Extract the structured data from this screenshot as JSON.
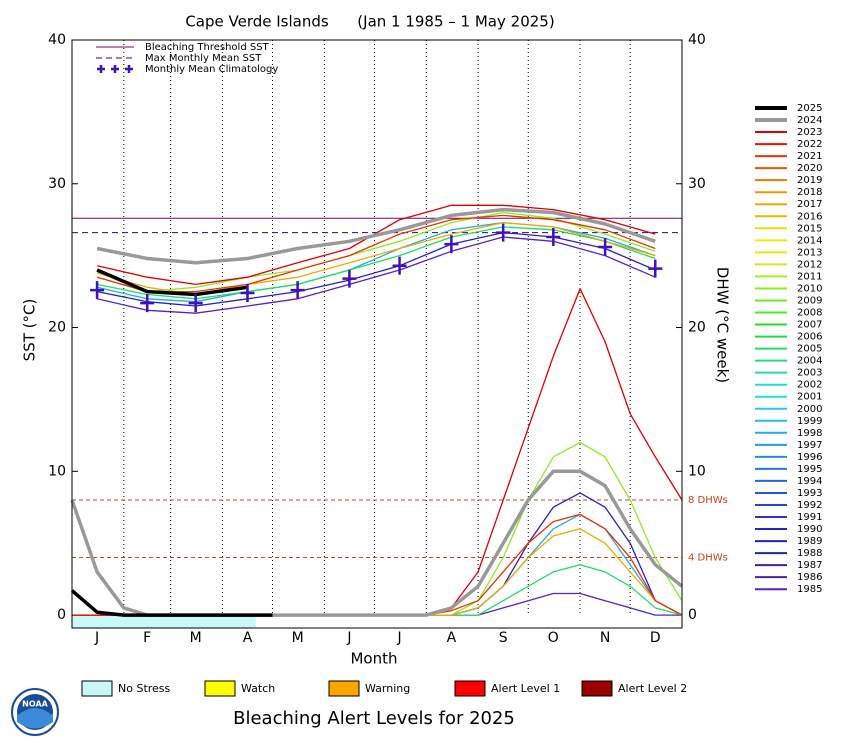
{
  "chart_data": {
    "type": "line",
    "title": "Cape Verde Islands      (Jan 1 1985 – 1 May 2025)",
    "subtitle": "Bleaching Alert Levels for 2025",
    "xlabel": "Month",
    "ylabel": "SST (°C)",
    "y2label": "DHW (°C week)",
    "logo_text": "NOAA",
    "xlim": [
      0,
      365
    ],
    "xticks": [
      {
        "value": 15,
        "label": "J"
      },
      {
        "value": 45,
        "label": "F"
      },
      {
        "value": 74,
        "label": "M"
      },
      {
        "value": 105,
        "label": "A"
      },
      {
        "value": 135,
        "label": "M"
      },
      {
        "value": 166,
        "label": "J"
      },
      {
        "value": 196,
        "label": "J"
      },
      {
        "value": 227,
        "label": "A"
      },
      {
        "value": 258,
        "label": "S"
      },
      {
        "value": 288,
        "label": "O"
      },
      {
        "value": 319,
        "label": "N"
      },
      {
        "value": 349,
        "label": "D"
      }
    ],
    "xgrid": [
      31,
      59,
      90,
      120,
      151,
      181,
      212,
      243,
      273,
      304,
      334
    ],
    "ylim": [
      -0.9,
      40
    ],
    "yticks": [
      0,
      10,
      20,
      30,
      40
    ],
    "y2lim": [
      -0.9,
      40
    ],
    "y2ticks": [
      0,
      10,
      20,
      30,
      40
    ],
    "threshold": {
      "name": "Bleaching Threshold SST",
      "value": 27.6,
      "color": "#800060"
    },
    "max_monthly_mean": {
      "name": "Max Monthly Mean SST",
      "value": 26.6,
      "color": "#300090"
    },
    "climatology": {
      "name": "Monthly Mean Climatology",
      "color": "#4010c0",
      "values": [
        22.6,
        21.7,
        21.7,
        22.4,
        22.6,
        23.4,
        24.3,
        25.8,
        26.6,
        26.3,
        25.6,
        24.1
      ]
    },
    "dhw_levels": [
      {
        "value": 8,
        "label": "8 DHWs"
      },
      {
        "value": 4,
        "label": "4 DHWs"
      }
    ],
    "dhw_level_color": "#d04010",
    "x": [
      15,
      45,
      74,
      105,
      135,
      166,
      196,
      227,
      258,
      288,
      319,
      349
    ],
    "dhw_x": [
      0,
      15,
      31,
      45,
      59,
      90,
      120,
      151,
      181,
      212,
      227,
      243,
      258,
      273,
      288,
      304,
      319,
      334,
      349,
      365
    ],
    "series": [
      {
        "name": "2025",
        "color": "#000000",
        "width": 3.5,
        "values": [
          24,
          22.5,
          22.3,
          22.8,
          null,
          null,
          null,
          null,
          null,
          null,
          null,
          null
        ],
        "dhw_values": [
          1.7,
          0.2,
          0,
          0,
          0,
          0,
          0,
          null,
          null,
          null,
          null,
          null,
          null,
          null,
          null,
          null,
          null,
          null,
          null,
          null
        ]
      },
      {
        "name": "2024",
        "color": "#999999",
        "width": 3.5,
        "values": [
          25.5,
          24.8,
          24.5,
          24.8,
          25.5,
          26,
          26.8,
          27.8,
          28.2,
          28,
          27.2,
          26
        ],
        "dhw_values": [
          8,
          3,
          0.5,
          0,
          0,
          0,
          0,
          0,
          0,
          0,
          0.5,
          2,
          5,
          8,
          10,
          10,
          9,
          6,
          3.5,
          2
        ]
      },
      {
        "name": "2023",
        "color": "#e00000",
        "values": [
          24.3,
          23.5,
          23,
          23.5,
          24.5,
          25.5,
          27.5,
          28.5,
          28.5,
          28.2,
          27.5,
          26.5
        ],
        "dhw_values": [
          0,
          0,
          0,
          0,
          0,
          0,
          0,
          0,
          0,
          0,
          0.5,
          3,
          8,
          13,
          18,
          22.7,
          19,
          14,
          11,
          8
        ]
      },
      {
        "name": "2022",
        "color": "#ee1100"
      },
      {
        "name": "2021",
        "color": "#ee3300",
        "values": [
          23.5,
          22.5,
          22.5,
          23,
          24,
          25,
          26.5,
          27.5,
          27.8,
          27.5,
          26.8,
          25.5
        ],
        "dhw_values": [
          0,
          0,
          0,
          0,
          0,
          0,
          0,
          0,
          0,
          0,
          0.3,
          1,
          3,
          5,
          6.5,
          7,
          6,
          4,
          1,
          0
        ]
      },
      {
        "name": "2020",
        "color": "#ee5500"
      },
      {
        "name": "2019",
        "color": "#ee7700"
      },
      {
        "name": "2018",
        "color": "#ee9900"
      },
      {
        "name": "2017",
        "color": "#eeaa00",
        "values": [
          23.8,
          22.8,
          22.3,
          23,
          23.5,
          24.5,
          25.5,
          26.5,
          27.3,
          27,
          26,
          25
        ],
        "dhw_values": [
          0,
          0,
          0,
          0,
          0,
          0,
          0,
          0,
          0,
          0,
          0,
          0.5,
          2,
          4,
          5.5,
          6,
          5,
          3,
          1,
          0
        ]
      },
      {
        "name": "2016",
        "color": "#eebb00"
      },
      {
        "name": "2015",
        "color": "#eedd00"
      },
      {
        "name": "2014",
        "color": "#eeee00"
      },
      {
        "name": "2013",
        "color": "#ddee00"
      },
      {
        "name": "2012",
        "color": "#ccee22"
      },
      {
        "name": "2011",
        "color": "#aaee22"
      },
      {
        "name": "2010",
        "color": "#88ee22",
        "values": [
          23.5,
          22.5,
          22.8,
          23.5,
          24,
          25,
          26,
          27.3,
          28,
          27.6,
          26.5,
          25.3
        ],
        "dhw_values": [
          0,
          0,
          0,
          0,
          0,
          0,
          0,
          0,
          0,
          0,
          0,
          1,
          4,
          8,
          11,
          12,
          11,
          8,
          4,
          1
        ]
      },
      {
        "name": "2009",
        "color": "#66ee22"
      },
      {
        "name": "2008",
        "color": "#44ee22"
      },
      {
        "name": "2007",
        "color": "#22dd22"
      },
      {
        "name": "2006",
        "color": "#22dd44"
      },
      {
        "name": "2005",
        "color": "#22dd66",
        "values": [
          23,
          22.3,
          22,
          22.5,
          23,
          24,
          25,
          26.3,
          27,
          26.8,
          26,
          24.8
        ],
        "dhw_values": [
          0,
          0,
          0,
          0,
          0,
          0,
          0,
          0,
          0,
          0,
          0,
          0,
          1,
          2,
          3,
          3.5,
          3,
          2,
          0.5,
          0
        ]
      },
      {
        "name": "2004",
        "color": "#22dd88"
      },
      {
        "name": "2003",
        "color": "#22ddaa"
      },
      {
        "name": "2002",
        "color": "#22ddcc"
      },
      {
        "name": "2001",
        "color": "#22dddd"
      },
      {
        "name": "2000",
        "color": "#22ccee"
      },
      {
        "name": "1999",
        "color": "#22bbee"
      },
      {
        "name": "1998",
        "color": "#22aaee",
        "values": [
          22.8,
          22,
          21.8,
          22.5,
          23,
          24,
          25.5,
          26.8,
          27.3,
          27,
          26.2,
          25
        ],
        "dhw_values": [
          0,
          0,
          0,
          0,
          0,
          0,
          0,
          0,
          0,
          0,
          0,
          0.5,
          2,
          4,
          6,
          7,
          6,
          3.5,
          1,
          0
        ]
      },
      {
        "name": "1997",
        "color": "#2299ee"
      },
      {
        "name": "1996",
        "color": "#2288ee"
      },
      {
        "name": "1995",
        "color": "#2277ee"
      },
      {
        "name": "1994",
        "color": "#2266ee"
      },
      {
        "name": "1993",
        "color": "#2255ee"
      },
      {
        "name": "1992",
        "color": "#2244dd"
      },
      {
        "name": "1991",
        "color": "#2233dd"
      },
      {
        "name": "1990",
        "color": "#2222cc",
        "values": [
          22.5,
          21.8,
          21.5,
          22,
          22.5,
          23.3,
          24.3,
          25.8,
          26.6,
          26.3,
          25.5,
          24
        ],
        "dhw_values": [
          0,
          0,
          0,
          0,
          0,
          0,
          0,
          0,
          0,
          0,
          0,
          0.5,
          2,
          5,
          7.5,
          8.5,
          7.5,
          5,
          1,
          0
        ]
      },
      {
        "name": "1989",
        "color": "#2222bb"
      },
      {
        "name": "1988",
        "color": "#2222aa"
      },
      {
        "name": "1987",
        "color": "#3322aa"
      },
      {
        "name": "1986",
        "color": "#4422aa"
      },
      {
        "name": "1985",
        "color": "#5522cc",
        "values": [
          22,
          21.2,
          21,
          21.5,
          22,
          23,
          24,
          25.3,
          26.3,
          26,
          25,
          23.5
        ],
        "dhw_values": [
          0,
          0,
          0,
          0,
          0,
          0,
          0,
          0,
          0,
          0,
          0,
          0,
          0.5,
          1,
          1.5,
          1.5,
          1,
          0.5,
          0,
          0
        ]
      }
    ],
    "alert_levels": [
      {
        "name": "No Stress",
        "color": "#c8f8f8"
      },
      {
        "name": "Watch",
        "color": "#ffff00"
      },
      {
        "name": "Warning",
        "color": "#ffa500"
      },
      {
        "name": "Alert Level 1",
        "color": "#ff0000"
      },
      {
        "name": "Alert Level 2",
        "color": "#990000"
      }
    ],
    "alert_periods": [
      {
        "from": 0,
        "to": 110,
        "level": 0
      }
    ]
  }
}
